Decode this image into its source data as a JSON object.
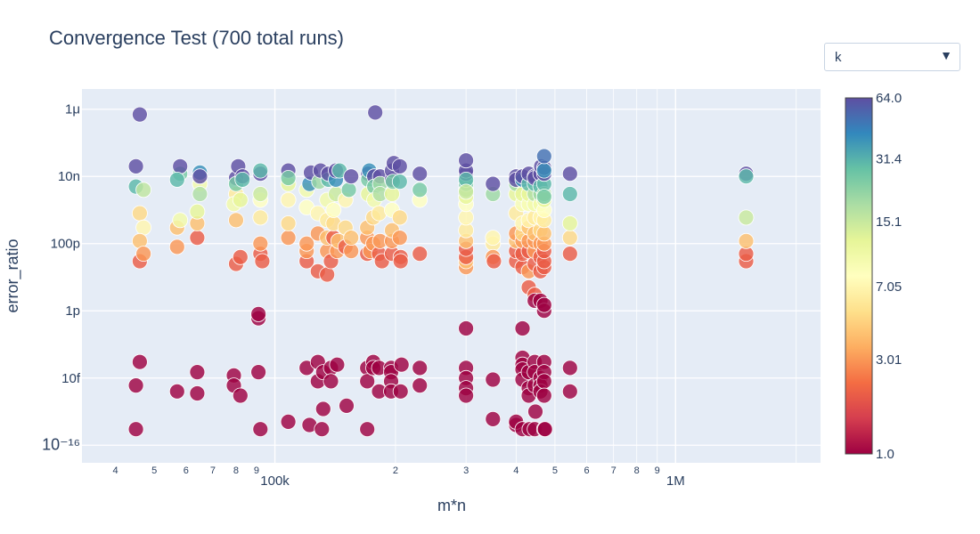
{
  "title": "Convergence Test (700 total runs)",
  "dropdown": {
    "selected": "k"
  },
  "colors": {
    "plot_background": "#e5ecf6",
    "grid": "#ffffff",
    "text": "#2a3f5f"
  },
  "colorbar": {
    "min": 1,
    "max": 64,
    "scale": "log2",
    "ticks": [
      "64.0",
      "31.4",
      "15.1",
      "7.05",
      "3.01",
      "1.0"
    ],
    "tick_values": [
      64,
      31.4,
      15.1,
      7.05,
      3.01,
      1
    ],
    "colorscale": [
      "#9e0142",
      "#d53e4f",
      "#f46d43",
      "#fdae61",
      "#fee08b",
      "#ffffbf",
      "#e6f598",
      "#abdda4",
      "#66c2a5",
      "#3288bd",
      "#5e4fa2"
    ]
  },
  "chart_data": {
    "type": "scatter",
    "title": "Convergence Test (700 total runs)",
    "xlabel": "m*n",
    "ylabel": "error_ratio",
    "x_scale": "log",
    "y_scale": "log",
    "xlim": [
      33000,
      2300000
    ],
    "ylim": [
      3e-17,
      4e-06
    ],
    "x_tick_labels": [
      {
        "v": 40000,
        "t": "4"
      },
      {
        "v": 50000,
        "t": "5"
      },
      {
        "v": 60000,
        "t": "6"
      },
      {
        "v": 70000,
        "t": "7"
      },
      {
        "v": 80000,
        "t": "8"
      },
      {
        "v": 90000,
        "t": "9"
      },
      {
        "v": 100000,
        "t": "100k"
      },
      {
        "v": 200000,
        "t": "2"
      },
      {
        "v": 300000,
        "t": "3"
      },
      {
        "v": 400000,
        "t": "4"
      },
      {
        "v": 500000,
        "t": "5"
      },
      {
        "v": 600000,
        "t": "6"
      },
      {
        "v": 700000,
        "t": "7"
      },
      {
        "v": 800000,
        "t": "8"
      },
      {
        "v": 900000,
        "t": "9"
      },
      {
        "v": 1000000,
        "t": "1M"
      }
    ],
    "y_tick_labels": [
      {
        "v": 1e-06,
        "t": "1μ"
      },
      {
        "v": 1e-08,
        "t": "10n"
      },
      {
        "v": 1e-10,
        "t": "100p"
      },
      {
        "v": 1e-12,
        "t": "1p"
      },
      {
        "v": 1e-14,
        "t": "10f"
      },
      {
        "v": 1e-16,
        "t": "10⁻¹⁶"
      }
    ],
    "color_variable": "k",
    "point_columns": [
      "m*n",
      "error_ratio",
      "k"
    ],
    "points": [
      [
        45000,
        6e-15,
        1
      ],
      [
        45000,
        3e-16,
        1
      ],
      [
        46000,
        3e-14,
        1
      ],
      [
        46000,
        3e-11,
        2
      ],
      [
        46000,
        8e-10,
        5
      ],
      [
        45000,
        2e-08,
        64
      ],
      [
        45000,
        5e-09,
        30
      ],
      [
        46000,
        7e-07,
        64
      ],
      [
        47000,
        4e-09,
        16
      ],
      [
        47000,
        3e-10,
        7
      ],
      [
        46000,
        1.2e-10,
        4
      ],
      [
        47000,
        5e-11,
        3
      ],
      [
        57000,
        4e-15,
        1
      ],
      [
        57000,
        8e-11,
        3
      ],
      [
        57000,
        3e-10,
        4
      ],
      [
        58000,
        1.2e-08,
        25
      ],
      [
        58000,
        2e-08,
        64
      ],
      [
        58000,
        5e-10,
        10
      ],
      [
        57000,
        8e-09,
        30
      ],
      [
        64000,
        1.5e-14,
        1
      ],
      [
        64000,
        3.5e-15,
        1
      ],
      [
        64000,
        1.5e-10,
        2
      ],
      [
        64000,
        4e-10,
        4
      ],
      [
        65000,
        6e-09,
        10
      ],
      [
        65000,
        1.3e-08,
        40
      ],
      [
        65000,
        1e-08,
        64
      ],
      [
        64000,
        9e-10,
        12
      ],
      [
        65000,
        3e-09,
        18
      ],
      [
        79000,
        1.2e-14,
        1
      ],
      [
        79000,
        6e-15,
        1
      ],
      [
        80000,
        2.5e-11,
        2
      ],
      [
        80000,
        5e-10,
        4
      ],
      [
        80000,
        3e-09,
        6
      ],
      [
        80000,
        9e-09,
        64
      ],
      [
        81000,
        2e-08,
        64
      ],
      [
        80000,
        6e-09,
        25
      ],
      [
        79000,
        1.5e-09,
        10
      ],
      [
        82000,
        3e-15,
        1
      ],
      [
        82000,
        4e-11,
        2
      ],
      [
        83000,
        1e-08,
        64
      ],
      [
        83000,
        8e-09,
        30
      ],
      [
        82000,
        2e-09,
        12
      ],
      [
        91000,
        1.5e-14,
        1
      ],
      [
        91000,
        6e-13,
        1
      ],
      [
        91000,
        8e-13,
        1
      ],
      [
        92000,
        5e-11,
        2
      ],
      [
        92000,
        1e-10,
        3
      ],
      [
        92000,
        2e-09,
        8
      ],
      [
        92000,
        6e-10,
        6
      ],
      [
        92000,
        1.2e-08,
        64
      ],
      [
        92000,
        1.5e-08,
        30
      ],
      [
        92000,
        3e-09,
        15
      ],
      [
        92000,
        3e-16,
        1
      ],
      [
        93000,
        3e-11,
        2
      ],
      [
        108000,
        5e-16,
        1
      ],
      [
        108000,
        1.5e-10,
        3
      ],
      [
        108000,
        2e-09,
        7
      ],
      [
        108000,
        6e-09,
        12
      ],
      [
        108000,
        1.5e-08,
        64
      ],
      [
        108000,
        9e-09,
        25
      ],
      [
        108000,
        4e-10,
        5
      ],
      [
        120000,
        2e-14,
        1
      ],
      [
        120000,
        3e-11,
        2
      ],
      [
        120000,
        6e-11,
        3
      ],
      [
        120000,
        1e-10,
        3
      ],
      [
        120000,
        1.2e-09,
        8
      ],
      [
        120000,
        4e-09,
        10
      ],
      [
        122000,
        6e-09,
        40
      ],
      [
        123000,
        1.3e-08,
        64
      ],
      [
        122000,
        4e-16,
        1
      ],
      [
        128000,
        3e-14,
        1
      ],
      [
        128000,
        8e-15,
        1
      ],
      [
        128000,
        1.5e-11,
        2
      ],
      [
        128000,
        2e-10,
        3
      ],
      [
        128000,
        8e-10,
        7
      ],
      [
        129000,
        7e-09,
        20
      ],
      [
        130000,
        1.5e-08,
        64
      ],
      [
        131000,
        3e-16,
        1
      ],
      [
        132000,
        1.5e-14,
        1
      ],
      [
        132000,
        1.2e-15,
        1
      ],
      [
        135000,
        1.2e-11,
        2
      ],
      [
        135000,
        6e-11,
        3
      ],
      [
        135000,
        1.5e-10,
        4
      ],
      [
        135000,
        5e-10,
        6
      ],
      [
        135000,
        2e-09,
        10
      ],
      [
        136000,
        8e-09,
        30
      ],
      [
        136000,
        1.2e-08,
        64
      ],
      [
        138000,
        3e-11,
        2
      ],
      [
        138000,
        2e-14,
        1
      ],
      [
        138000,
        8e-15,
        1
      ],
      [
        140000,
        1.5e-10,
        2
      ],
      [
        140000,
        4e-10,
        5
      ],
      [
        140000,
        1e-09,
        8
      ],
      [
        142000,
        3e-09,
        15
      ],
      [
        142000,
        8e-09,
        40
      ],
      [
        142000,
        1.5e-08,
        64
      ],
      [
        143000,
        6e-11,
        3
      ],
      [
        143000,
        2.5e-14,
        1
      ],
      [
        144000,
        1.2e-10,
        4
      ],
      [
        145000,
        1.5e-08,
        30
      ],
      [
        150000,
        8e-11,
        2
      ],
      [
        150000,
        2e-09,
        7
      ],
      [
        150000,
        3e-10,
        5
      ],
      [
        151000,
        1.5e-15,
        1
      ],
      [
        153000,
        4e-09,
        25
      ],
      [
        155000,
        1e-08,
        64
      ],
      [
        155000,
        6e-11,
        3
      ],
      [
        155000,
        1.5e-10,
        4
      ],
      [
        170000,
        2e-14,
        1
      ],
      [
        170000,
        8e-15,
        1
      ],
      [
        170000,
        3e-16,
        1
      ],
      [
        170000,
        5e-11,
        2
      ],
      [
        170000,
        1.5e-10,
        3
      ],
      [
        170000,
        3e-10,
        4
      ],
      [
        171000,
        1.2e-08,
        64
      ],
      [
        171000,
        8e-09,
        25
      ],
      [
        171000,
        3e-09,
        12
      ],
      [
        172000,
        1.5e-08,
        40
      ],
      [
        173000,
        6e-11,
        3
      ],
      [
        176000,
        3e-14,
        1
      ],
      [
        176000,
        2e-14,
        1
      ],
      [
        176000,
        1e-10,
        3
      ],
      [
        176000,
        6e-10,
        5
      ],
      [
        177000,
        1e-08,
        64
      ],
      [
        177000,
        5e-09,
        25
      ],
      [
        177000,
        2e-09,
        10
      ],
      [
        178000,
        8e-07,
        64
      ],
      [
        182000,
        4e-15,
        1
      ],
      [
        182000,
        2e-14,
        1
      ],
      [
        182000,
        5e-11,
        2
      ],
      [
        182000,
        8e-10,
        6
      ],
      [
        183000,
        1.2e-10,
        3
      ],
      [
        183000,
        1e-08,
        64
      ],
      [
        183000,
        6e-09,
        20
      ],
      [
        183000,
        3e-09,
        18
      ],
      [
        185000,
        3e-11,
        2
      ],
      [
        195000,
        2e-14,
        1
      ],
      [
        195000,
        1.5e-14,
        1
      ],
      [
        195000,
        8e-15,
        1
      ],
      [
        195000,
        4e-15,
        1
      ],
      [
        196000,
        5e-11,
        2
      ],
      [
        196000,
        1.2e-10,
        3
      ],
      [
        196000,
        2.5e-10,
        4
      ],
      [
        196000,
        1e-09,
        8
      ],
      [
        196000,
        3e-09,
        12
      ],
      [
        196000,
        8e-09,
        64
      ],
      [
        196000,
        1.5e-08,
        64
      ],
      [
        197000,
        7e-09,
        25
      ],
      [
        198000,
        2.5e-08,
        64
      ],
      [
        205000,
        2e-08,
        64
      ],
      [
        205000,
        7e-09,
        30
      ],
      [
        205000,
        6e-10,
        5
      ],
      [
        205000,
        1.5e-10,
        3
      ],
      [
        206000,
        4e-15,
        1
      ],
      [
        206000,
        4e-11,
        2
      ],
      [
        206000,
        3e-11,
        2
      ],
      [
        207000,
        2.5e-14,
        1
      ],
      [
        230000,
        6e-15,
        1
      ],
      [
        230000,
        2e-14,
        1
      ],
      [
        230000,
        5e-11,
        2
      ],
      [
        230000,
        2e-09,
        8
      ],
      [
        230000,
        4e-09,
        25
      ],
      [
        230000,
        1.2e-08,
        64
      ],
      [
        300000,
        3e-13,
        1
      ],
      [
        300000,
        2e-14,
        1
      ],
      [
        300000,
        1e-14,
        1
      ],
      [
        300000,
        5e-15,
        1
      ],
      [
        300000,
        3e-15,
        1
      ],
      [
        300000,
        2e-11,
        3
      ],
      [
        300000,
        3e-11,
        4
      ],
      [
        300000,
        4e-11,
        2
      ],
      [
        300000,
        7e-11,
        2
      ],
      [
        300000,
        1.2e-10,
        4
      ],
      [
        300000,
        2.5e-10,
        6
      ],
      [
        300000,
        6e-10,
        7
      ],
      [
        300000,
        1.5e-09,
        8
      ],
      [
        300000,
        2.5e-09,
        12
      ],
      [
        300000,
        4e-09,
        18
      ],
      [
        300000,
        6e-09,
        25
      ],
      [
        300000,
        1.2e-08,
        64
      ],
      [
        300000,
        1.5e-08,
        64
      ],
      [
        300000,
        3e-08,
        64
      ],
      [
        300000,
        8e-09,
        30
      ],
      [
        300000,
        3.5e-09,
        15
      ],
      [
        350000,
        9e-15,
        1
      ],
      [
        350000,
        6e-16,
        1
      ],
      [
        350000,
        1e-10,
        6
      ],
      [
        350000,
        1.5e-10,
        7
      ],
      [
        350000,
        3e-09,
        20
      ],
      [
        350000,
        6e-09,
        64
      ],
      [
        350000,
        4e-11,
        3
      ],
      [
        352000,
        3e-11,
        2
      ],
      [
        400000,
        4e-16,
        1
      ],
      [
        400000,
        5e-16,
        1
      ],
      [
        400000,
        3e-11,
        2
      ],
      [
        400000,
        6e-11,
        2
      ],
      [
        400000,
        1.2e-10,
        4
      ],
      [
        400000,
        2e-10,
        3
      ],
      [
        400000,
        8e-10,
        6
      ],
      [
        400000,
        3e-09,
        12
      ],
      [
        400000,
        6e-09,
        20
      ],
      [
        400000,
        1e-08,
        64
      ],
      [
        400000,
        8e-09,
        64
      ],
      [
        415000,
        3e-13,
        1
      ],
      [
        415000,
        4e-14,
        1
      ],
      [
        415000,
        2.5e-14,
        1
      ],
      [
        415000,
        1.8e-14,
        1
      ],
      [
        415000,
        9e-15,
        1
      ],
      [
        415000,
        3e-16,
        1
      ],
      [
        415000,
        2e-11,
        2
      ],
      [
        415000,
        5e-11,
        2
      ],
      [
        415000,
        1.2e-10,
        3
      ],
      [
        415000,
        2e-10,
        5
      ],
      [
        415000,
        4e-10,
        7
      ],
      [
        415000,
        1.5e-09,
        9
      ],
      [
        415000,
        3e-09,
        12
      ],
      [
        415000,
        8e-09,
        40
      ],
      [
        415000,
        1e-08,
        64
      ],
      [
        430000,
        5e-12,
        2
      ],
      [
        430000,
        1.5e-11,
        3
      ],
      [
        430000,
        1.5e-14,
        1
      ],
      [
        430000,
        5e-15,
        1
      ],
      [
        430000,
        3e-15,
        1
      ],
      [
        430000,
        6e-11,
        2
      ],
      [
        430000,
        1.2e-10,
        3
      ],
      [
        430000,
        3e-10,
        4
      ],
      [
        430000,
        5e-10,
        7
      ],
      [
        430000,
        1.5e-09,
        9
      ],
      [
        430000,
        3e-09,
        12
      ],
      [
        430000,
        6e-09,
        30
      ],
      [
        430000,
        1.2e-08,
        64
      ],
      [
        432000,
        3e-16,
        1
      ],
      [
        445000,
        3e-12,
        2
      ],
      [
        445000,
        2e-12,
        1
      ],
      [
        445000,
        3e-14,
        1
      ],
      [
        445000,
        1.5e-14,
        1
      ],
      [
        445000,
        6e-15,
        1
      ],
      [
        445000,
        3e-16,
        1
      ],
      [
        445000,
        2.5e-11,
        2
      ],
      [
        445000,
        6e-11,
        3
      ],
      [
        445000,
        1.2e-10,
        3
      ],
      [
        445000,
        2e-10,
        4
      ],
      [
        445000,
        6e-10,
        6
      ],
      [
        445000,
        1.5e-09,
        10
      ],
      [
        445000,
        3e-09,
        18
      ],
      [
        445000,
        6e-09,
        30
      ],
      [
        445000,
        1e-08,
        64
      ],
      [
        445000,
        9e-09,
        64
      ],
      [
        447000,
        1e-15,
        1
      ],
      [
        460000,
        2e-12,
        1
      ],
      [
        460000,
        1e-14,
        1
      ],
      [
        460000,
        6e-15,
        1
      ],
      [
        460000,
        4e-15,
        1
      ],
      [
        460000,
        1.5e-11,
        2
      ],
      [
        460000,
        4e-11,
        2
      ],
      [
        460000,
        1e-10,
        3
      ],
      [
        460000,
        2.5e-10,
        5
      ],
      [
        460000,
        6e-10,
        7
      ],
      [
        460000,
        1.5e-09,
        10
      ],
      [
        460000,
        3e-09,
        20
      ],
      [
        460000,
        5e-09,
        30
      ],
      [
        460000,
        1.2e-08,
        64
      ],
      [
        462000,
        2e-08,
        64
      ],
      [
        470000,
        3e-14,
        1
      ],
      [
        470000,
        1.5e-14,
        1
      ],
      [
        470000,
        8e-15,
        1
      ],
      [
        470000,
        3e-15,
        1
      ],
      [
        470000,
        3e-16,
        1
      ],
      [
        470000,
        1e-12,
        1
      ],
      [
        470000,
        1.5e-12,
        1
      ],
      [
        470000,
        2e-11,
        2
      ],
      [
        470000,
        3e-11,
        2
      ],
      [
        470000,
        6e-11,
        2
      ],
      [
        470000,
        1e-10,
        3
      ],
      [
        470000,
        2e-10,
        4
      ],
      [
        470000,
        5e-10,
        6
      ],
      [
        470000,
        1e-09,
        8
      ],
      [
        470000,
        2e-09,
        12
      ],
      [
        470000,
        3e-09,
        18
      ],
      [
        470000,
        6e-09,
        30
      ],
      [
        470000,
        1.2e-08,
        64
      ],
      [
        470000,
        1.8e-08,
        64
      ],
      [
        470000,
        1.5e-08,
        40
      ],
      [
        470000,
        4e-08,
        50
      ],
      [
        470000,
        2.5e-09,
        25
      ],
      [
        472000,
        3e-16,
        1
      ],
      [
        545000,
        2e-14,
        1
      ],
      [
        545000,
        4e-15,
        1
      ],
      [
        545000,
        5e-11,
        2
      ],
      [
        545000,
        1.5e-10,
        5
      ],
      [
        545000,
        4e-10,
        12
      ],
      [
        545000,
        3e-09,
        30
      ],
      [
        545000,
        1.2e-08,
        64
      ],
      [
        1500000,
        3e-11,
        2
      ],
      [
        1500000,
        5e-11,
        2
      ],
      [
        1500000,
        1.2e-10,
        4
      ],
      [
        1500000,
        6e-10,
        15
      ],
      [
        1500000,
        1.2e-08,
        64
      ],
      [
        1500000,
        1e-08,
        30
      ]
    ]
  }
}
